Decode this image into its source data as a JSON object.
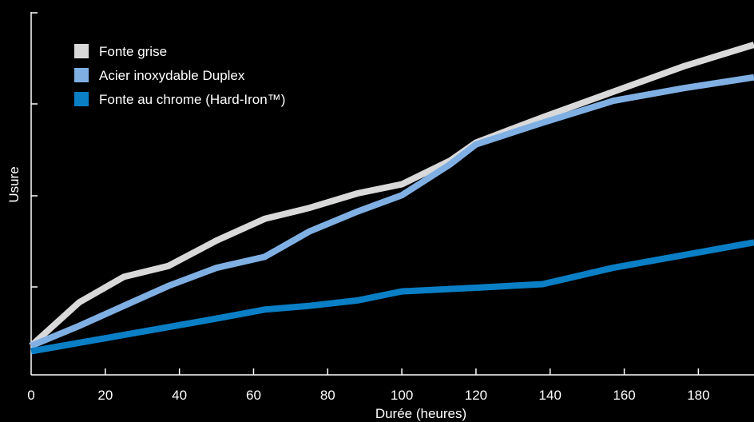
{
  "chart_data": {
    "type": "line",
    "title": "",
    "xlabel": "Durée (heures)",
    "ylabel": "Usure",
    "xlim": [
      0,
      195
    ],
    "ylim": [
      0,
      100
    ],
    "x_ticks": [
      0,
      20,
      40,
      60,
      80,
      100,
      120,
      140,
      160,
      180
    ],
    "y_ticks_labels_shown": false,
    "grid": false,
    "legend_position": "top-left",
    "series": [
      {
        "name": "Fonte grise",
        "color": "#d9d9d9",
        "points": [
          [
            0,
            8
          ],
          [
            13,
            20
          ],
          [
            25,
            27
          ],
          [
            37,
            30
          ],
          [
            50,
            37
          ],
          [
            63,
            43
          ],
          [
            75,
            46
          ],
          [
            88,
            50
          ],
          [
            100,
            52.5
          ],
          [
            113,
            59
          ],
          [
            120,
            64
          ],
          [
            138,
            71
          ],
          [
            157,
            78
          ],
          [
            176,
            85
          ],
          [
            195,
            91
          ]
        ]
      },
      {
        "name": "Acier inoxydable Duplex",
        "color": "#80b0e3",
        "points": [
          [
            0,
            8
          ],
          [
            13,
            13.5
          ],
          [
            25,
            19
          ],
          [
            37,
            24.5
          ],
          [
            50,
            29.5
          ],
          [
            63,
            32.5
          ],
          [
            75,
            39.5
          ],
          [
            88,
            45
          ],
          [
            100,
            49.5
          ],
          [
            113,
            58
          ],
          [
            120,
            63.5
          ],
          [
            138,
            69.5
          ],
          [
            157,
            75.5
          ],
          [
            176,
            79
          ],
          [
            195,
            82
          ]
        ]
      },
      {
        "name": "Fonte au chrome (Hard-Iron™)",
        "color": "#0a7fc6",
        "points": [
          [
            0,
            6.5
          ],
          [
            25,
            11
          ],
          [
            50,
            15.5
          ],
          [
            63,
            18
          ],
          [
            75,
            19
          ],
          [
            88,
            20.5
          ],
          [
            100,
            23
          ],
          [
            120,
            24
          ],
          [
            138,
            25
          ],
          [
            157,
            29.5
          ],
          [
            176,
            33
          ],
          [
            195,
            36.5
          ]
        ]
      }
    ]
  }
}
